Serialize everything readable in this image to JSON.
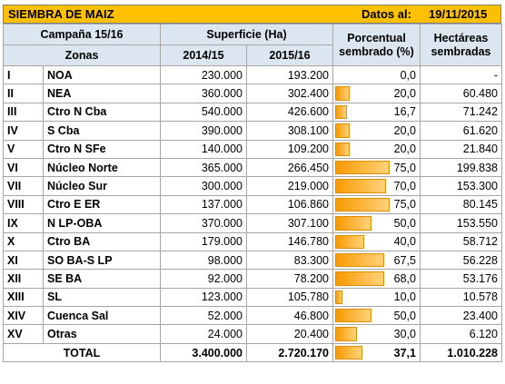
{
  "header": {
    "title": "SIEMBRA DE MAIZ",
    "date_label": "Datos al:",
    "date_value": "19/11/2015"
  },
  "columns": {
    "campaign": "Campaña 15/16",
    "surface": "Superficie (Ha)",
    "pct_line1": "Porcentual",
    "pct_line2": "sembrado (%)",
    "ha_line1": "Hectáreas",
    "ha_line2": "sembradas",
    "zones": "Zonas",
    "y1": "2014/15",
    "y2": "2015/16"
  },
  "rows": [
    {
      "num": "I",
      "zone": "NOA",
      "s1415": "230.000",
      "s1516": "193.200",
      "pct": "0,0",
      "pct_value": 0.0,
      "ha": "-"
    },
    {
      "num": "II",
      "zone": "NEA",
      "s1415": "360.000",
      "s1516": "302.400",
      "pct": "20,0",
      "pct_value": 20.0,
      "ha": "60.480"
    },
    {
      "num": "III",
      "zone": "Ctro N Cba",
      "s1415": "540.000",
      "s1516": "426.600",
      "pct": "16,7",
      "pct_value": 16.7,
      "ha": "71.242"
    },
    {
      "num": "IV",
      "zone": "S Cba",
      "s1415": "390.000",
      "s1516": "308.100",
      "pct": "20,0",
      "pct_value": 20.0,
      "ha": "61.620"
    },
    {
      "num": "V",
      "zone": "Ctro N SFe",
      "s1415": "140.000",
      "s1516": "109.200",
      "pct": "20,0",
      "pct_value": 20.0,
      "ha": "21.840"
    },
    {
      "num": "VI",
      "zone": "Núcleo Norte",
      "s1415": "365.000",
      "s1516": "266.450",
      "pct": "75,0",
      "pct_value": 75.0,
      "ha": "199.838"
    },
    {
      "num": "VII",
      "zone": "Núcleo Sur",
      "s1415": "300.000",
      "s1516": "219.000",
      "pct": "70,0",
      "pct_value": 70.0,
      "ha": "153.300"
    },
    {
      "num": "VIII",
      "zone": "Ctro E ER",
      "s1415": "137.000",
      "s1516": "106.860",
      "pct": "75,0",
      "pct_value": 75.0,
      "ha": "80.145"
    },
    {
      "num": "IX",
      "zone": "N LP-OBA",
      "s1415": "370.000",
      "s1516": "307.100",
      "pct": "50,0",
      "pct_value": 50.0,
      "ha": "153.550"
    },
    {
      "num": "X",
      "zone": "Ctro BA",
      "s1415": "179.000",
      "s1516": "146.780",
      "pct": "40,0",
      "pct_value": 40.0,
      "ha": "58.712"
    },
    {
      "num": "XI",
      "zone": "SO BA-S LP",
      "s1415": "98.000",
      "s1516": "83.300",
      "pct": "67,5",
      "pct_value": 67.5,
      "ha": "56.228"
    },
    {
      "num": "XII",
      "zone": "SE BA",
      "s1415": "92.000",
      "s1516": "78.200",
      "pct": "68,0",
      "pct_value": 68.0,
      "ha": "53.176"
    },
    {
      "num": "XIII",
      "zone": "SL",
      "s1415": "123.000",
      "s1516": "105.780",
      "pct": "10,0",
      "pct_value": 10.0,
      "ha": "10.578"
    },
    {
      "num": "XIV",
      "zone": "Cuenca Sal",
      "s1415": "52.000",
      "s1516": "46.800",
      "pct": "50,0",
      "pct_value": 50.0,
      "ha": "23.400"
    },
    {
      "num": "XV",
      "zone": "Otras",
      "s1415": "24.000",
      "s1516": "20.400",
      "pct": "30,0",
      "pct_value": 30.0,
      "ha": "6.120"
    }
  ],
  "total": {
    "label": "TOTAL",
    "s1415": "3.400.000",
    "s1516": "2.720.170",
    "pct": "37,1",
    "pct_value": 37.1,
    "ha": "1.010.228"
  },
  "colors": {
    "title_bg": "#FFC000",
    "header_bg": "#DCE6F1",
    "bar": "#F79A00"
  }
}
